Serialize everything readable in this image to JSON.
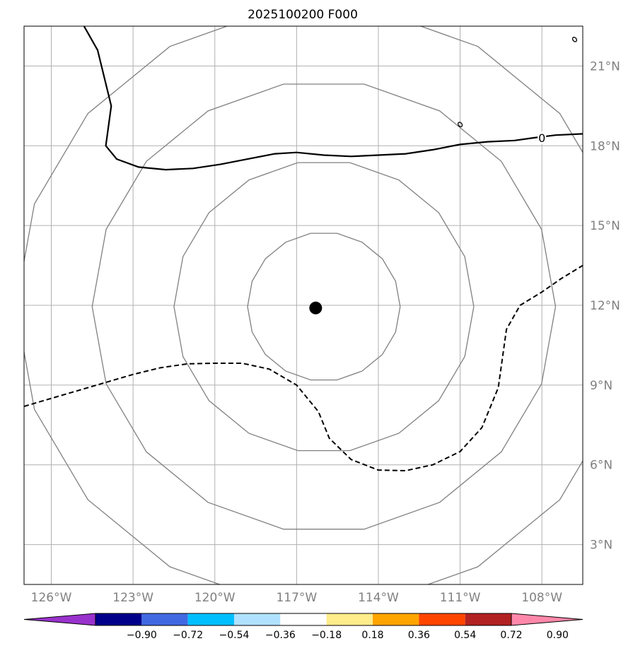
{
  "title": "2025100200 F000",
  "map": {
    "lon_range": [
      -127,
      -106.5
    ],
    "lat_range": [
      1.5,
      22.5
    ],
    "lon_ticks": [
      {
        "value": -126,
        "label": "126°W"
      },
      {
        "value": -123,
        "label": "123°W"
      },
      {
        "value": -120,
        "label": "120°W"
      },
      {
        "value": -117,
        "label": "117°W"
      },
      {
        "value": -114,
        "label": "114°W"
      },
      {
        "value": -111,
        "label": "111°W"
      },
      {
        "value": -108,
        "label": "108°W"
      }
    ],
    "lat_ticks": [
      {
        "value": 21,
        "label": "21°N"
      },
      {
        "value": 18,
        "label": "18°N"
      },
      {
        "value": 15,
        "label": "15°N"
      },
      {
        "value": 12,
        "label": "12°N"
      },
      {
        "value": 9,
        "label": "9°N"
      },
      {
        "value": 6,
        "label": "6°N"
      },
      {
        "value": 3,
        "label": "3°N"
      }
    ],
    "gridline_color": "#b0b0b0",
    "tick_label_color": "#808080"
  },
  "storm_center": {
    "lon": -116.3,
    "lat": 11.9,
    "color": "#000000"
  },
  "range_rings": {
    "center_lon": -116.0,
    "center_lat": 11.95,
    "radii_deg": [
      2.8,
      5.5,
      8.5,
      11.3
    ],
    "color": "#808080"
  },
  "zero_contour": {
    "label": "0",
    "label_position": {
      "lon": -108.0,
      "lat": 18.3
    },
    "solid": [
      [
        -124.8,
        22.5
      ],
      [
        -124.3,
        21.6
      ],
      [
        -123.8,
        19.5
      ],
      [
        -124.0,
        18.0
      ],
      [
        -123.6,
        17.5
      ],
      [
        -122.8,
        17.2
      ],
      [
        -121.8,
        17.1
      ],
      [
        -120.8,
        17.15
      ],
      [
        -119.8,
        17.3
      ],
      [
        -118.8,
        17.5
      ],
      [
        -117.8,
        17.7
      ],
      [
        -117.0,
        17.75
      ],
      [
        -116.0,
        17.65
      ],
      [
        -115.0,
        17.6
      ],
      [
        -114.0,
        17.65
      ],
      [
        -113.0,
        17.7
      ],
      [
        -112.0,
        17.85
      ],
      [
        -111.0,
        18.05
      ],
      [
        -110.0,
        18.15
      ],
      [
        -109.0,
        18.2
      ],
      [
        -108.3,
        18.3
      ],
      [
        -107.5,
        18.4
      ],
      [
        -106.5,
        18.45
      ]
    ],
    "dashed": [
      [
        -127.0,
        8.2
      ],
      [
        -126.0,
        8.5
      ],
      [
        -125.0,
        8.8
      ],
      [
        -124.0,
        9.1
      ],
      [
        -123.0,
        9.4
      ],
      [
        -122.0,
        9.65
      ],
      [
        -121.0,
        9.8
      ],
      [
        -120.0,
        9.82
      ],
      [
        -119.0,
        9.82
      ],
      [
        -118.0,
        9.6
      ],
      [
        -117.0,
        9.0
      ],
      [
        -116.2,
        8.0
      ],
      [
        -115.8,
        7.0
      ],
      [
        -115.0,
        6.2
      ],
      [
        -114.0,
        5.8
      ],
      [
        -113.0,
        5.78
      ],
      [
        -112.0,
        6.0
      ],
      [
        -111.0,
        6.5
      ],
      [
        -110.2,
        7.4
      ],
      [
        -109.6,
        8.9
      ],
      [
        -109.3,
        11.1
      ],
      [
        -108.8,
        12.0
      ],
      [
        -108.0,
        12.5
      ],
      [
        -107.3,
        13.0
      ],
      [
        -106.5,
        13.5
      ]
    ],
    "small_closed": [
      {
        "lon": -111.0,
        "lat": 18.8
      },
      {
        "lon": -106.8,
        "lat": 22.0
      }
    ]
  },
  "colorbar": {
    "colors": [
      "#9932cc",
      "#00008b",
      "#4169e1",
      "#00bfff",
      "#b0e2ff",
      "#ffffff",
      "#ffec8b",
      "#ffa500",
      "#ff4500",
      "#b22222",
      "#ff88aa"
    ],
    "labels": [
      "−0.90",
      "−0.72",
      "−0.54",
      "−0.36",
      "−0.18",
      "0.18",
      "0.36",
      "0.54",
      "0.72",
      "0.90"
    ]
  }
}
